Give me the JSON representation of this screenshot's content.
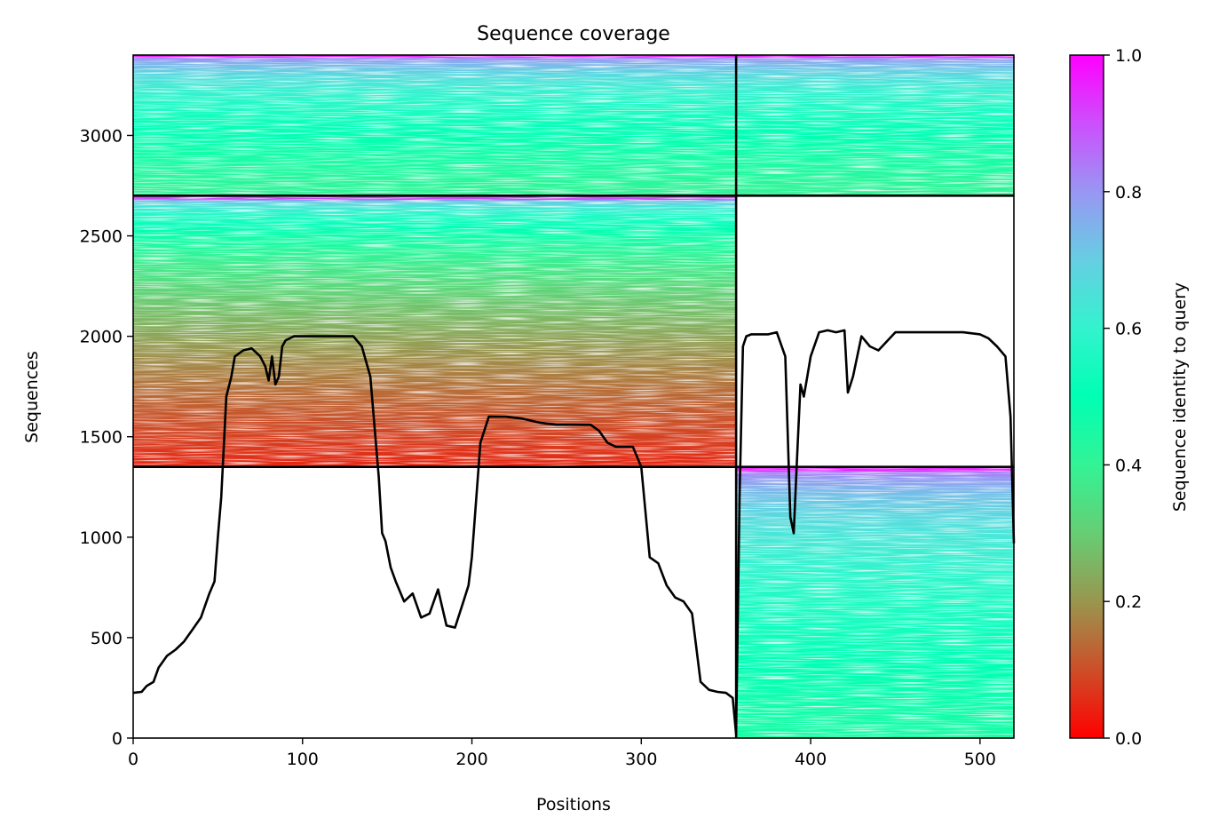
{
  "chart_data": {
    "type": "heatmap",
    "title": "Sequence coverage",
    "xlabel": "Positions",
    "ylabel": "Sequences",
    "xlim": [
      0,
      520
    ],
    "ylim": [
      0,
      3400
    ],
    "x_ticks": [
      0,
      100,
      200,
      300,
      400,
      500
    ],
    "y_ticks": [
      0,
      500,
      1000,
      1500,
      2000,
      2500,
      3000
    ],
    "x_tick_labels": [
      "0",
      "100",
      "200",
      "300",
      "400",
      "500"
    ],
    "y_tick_labels": [
      "0",
      "500",
      "1000",
      "1500",
      "2000",
      "2500",
      "3000"
    ],
    "colorbar": {
      "label": "Sequence identity to query",
      "range": [
        0,
        1
      ],
      "ticks": [
        0.0,
        0.2,
        0.4,
        0.6,
        0.8,
        1.0
      ],
      "tick_labels": [
        "0.0",
        "0.2",
        "0.4",
        "0.6",
        "0.8",
        "1.0"
      ],
      "colormap": "rainbow_r"
    },
    "chain_boundary_x": [
      356
    ],
    "block_boundary_y": [
      1350,
      2700
    ],
    "coverage_blocks": [
      {
        "y_range": [
          2700,
          3400
        ],
        "x_range": [
          0,
          356
        ],
        "identity_top": 0.95,
        "identity_bottom": 0.4
      },
      {
        "y_range": [
          2700,
          3400
        ],
        "x_range": [
          356,
          520
        ],
        "identity_top": 0.95,
        "identity_bottom": 0.4
      },
      {
        "y_range": [
          1350,
          2700
        ],
        "x_range": [
          0,
          356
        ],
        "identity_top": 0.9,
        "identity_bottom": 0.05
      },
      {
        "y_range": [
          0,
          1350
        ],
        "x_range": [
          356,
          520
        ],
        "identity_top": 0.95,
        "identity_bottom": 0.45
      }
    ],
    "series": [
      {
        "type": "line",
        "color": "#000000",
        "x": [
          0,
          5,
          8,
          12,
          15,
          20,
          25,
          30,
          35,
          40,
          45,
          48,
          50,
          52,
          55,
          58,
          60,
          65,
          70,
          75,
          78,
          80,
          82,
          84,
          86,
          88,
          90,
          95,
          100,
          110,
          120,
          130,
          135,
          140,
          145,
          147,
          149,
          152,
          155,
          160,
          165,
          170,
          175,
          180,
          185,
          190,
          195,
          198,
          200,
          205,
          210,
          220,
          230,
          240,
          250,
          260,
          270,
          275,
          280,
          285,
          290,
          295,
          300,
          305,
          310,
          315,
          320,
          325,
          330,
          335,
          340,
          345,
          350,
          354,
          356,
          358,
          360,
          362,
          365,
          370,
          375,
          380,
          385,
          388,
          390,
          392,
          394,
          396,
          398,
          400,
          405,
          410,
          415,
          420,
          422,
          425,
          430,
          435,
          440,
          450,
          460,
          470,
          480,
          490,
          500,
          505,
          510,
          515,
          518,
          520
        ],
        "y": [
          225,
          230,
          260,
          280,
          350,
          410,
          440,
          480,
          540,
          600,
          720,
          780,
          1000,
          1200,
          1700,
          1800,
          1900,
          1930,
          1940,
          1900,
          1850,
          1780,
          1900,
          1760,
          1800,
          1950,
          1980,
          2000,
          2000,
          2000,
          2000,
          2000,
          1950,
          1800,
          1300,
          1020,
          980,
          850,
          780,
          680,
          720,
          600,
          620,
          740,
          560,
          550,
          680,
          760,
          900,
          1470,
          1600,
          1600,
          1590,
          1570,
          1560,
          1560,
          1560,
          1530,
          1470,
          1450,
          1450,
          1450,
          1350,
          900,
          870,
          760,
          700,
          680,
          620,
          280,
          240,
          230,
          225,
          200,
          20,
          1200,
          1950,
          2000,
          2010,
          2010,
          2010,
          2020,
          1900,
          1100,
          1020,
          1400,
          1760,
          1700,
          1800,
          1900,
          2020,
          2030,
          2020,
          2030,
          1720,
          1800,
          2000,
          1950,
          1930,
          2020,
          2020,
          2020,
          2020,
          2020,
          2010,
          1990,
          1950,
          1900,
          1600,
          970
        ]
      }
    ]
  }
}
